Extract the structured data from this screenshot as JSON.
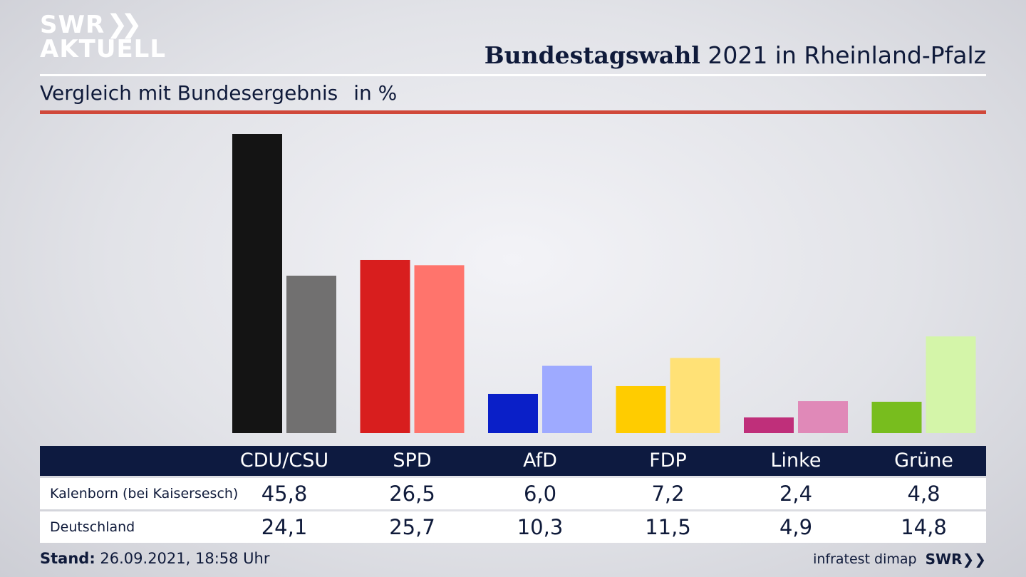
{
  "brand": {
    "logo_line1": "SWR",
    "logo_line2": "AKTUELL",
    "footer_logo": "SWR"
  },
  "header": {
    "title_bold": "Bundestagswahl",
    "title_rest": " 2021 in Rheinland-Pfalz",
    "subtitle": "Vergleich mit Bundesergebnis",
    "unit": "in %"
  },
  "colors": {
    "rule_red": "#d0483a",
    "table_header": "#0d1a40"
  },
  "chart_data": {
    "type": "bar",
    "categories": [
      "CDU/CSU",
      "SPD",
      "AfD",
      "FDP",
      "Linke",
      "Grüne"
    ],
    "series": [
      {
        "name": "Kalenborn (bei Kaisersesch)",
        "values": [
          45.8,
          26.5,
          6.0,
          7.2,
          2.4,
          4.8
        ],
        "colors": [
          "#141414",
          "#d81e1e",
          "#0a1fc8",
          "#ffcc00",
          "#bf2f7a",
          "#78bd1e"
        ]
      },
      {
        "name": "Deutschland",
        "values": [
          24.1,
          25.7,
          10.3,
          11.5,
          4.9,
          14.8
        ],
        "colors": [
          "#717070",
          "#ff746c",
          "#9eaaff",
          "#ffe176",
          "#e089b8",
          "#d4f5a9"
        ]
      }
    ],
    "labels": {
      "Kalenborn (bei Kaisersesch)": [
        "45,8",
        "26,5",
        "6,0",
        "7,2",
        "2,4",
        "4,8"
      ],
      "Deutschland": [
        "24,1",
        "25,7",
        "10,3",
        "11,5",
        "4,9",
        "14,8"
      ]
    },
    "ylim": [
      0,
      45.8
    ],
    "grid": false,
    "legend": "table-below"
  },
  "footer": {
    "stand_label": "Stand:",
    "stand_value": " 26.09.2021, 18:58 Uhr",
    "source": "infratest dimap"
  }
}
